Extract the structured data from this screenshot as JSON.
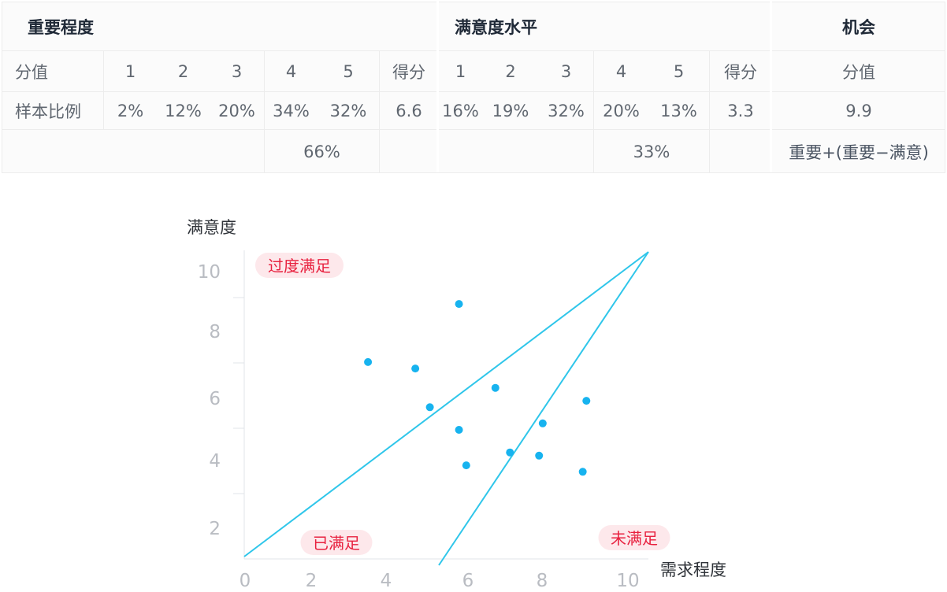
{
  "table": {
    "header": {
      "importance": "重要程度",
      "satisfaction": "满意度水平",
      "opportunity": "机会"
    },
    "row_score": {
      "label": "分值",
      "importance": [
        "1",
        "2",
        "3",
        "4",
        "5",
        "得分"
      ],
      "satisfaction": [
        "1",
        "2",
        "3",
        "4",
        "5",
        "得分"
      ],
      "opportunity": "分值"
    },
    "row_ratio": {
      "label": "样本比例",
      "importance": [
        "2%",
        "12%",
        "20%",
        "34%",
        "32%",
        "6.6"
      ],
      "satisfaction": [
        "16%",
        "19%",
        "32%",
        "20%",
        "13%",
        "3.3"
      ],
      "opportunity": "9.9"
    },
    "row_summary": {
      "importance_total": "66%",
      "satisfaction_total": "33%",
      "opportunity_formula": "重要+(重要−满意)"
    }
  },
  "chart_data": {
    "type": "scatter",
    "xlabel": "需求程度",
    "ylabel": "满意度",
    "xlim": [
      0,
      11
    ],
    "ylim": [
      1,
      11
    ],
    "xticks": [
      "0",
      "2",
      "4",
      "6",
      "8",
      "10"
    ],
    "yticks": [
      "2",
      "4",
      "6",
      "8",
      "10"
    ],
    "points": [
      {
        "x": 5.9,
        "y": 8.9
      },
      {
        "x": 3.4,
        "y": 7.1
      },
      {
        "x": 4.7,
        "y": 6.9
      },
      {
        "x": 6.9,
        "y": 6.3
      },
      {
        "x": 5.1,
        "y": 5.7
      },
      {
        "x": 9.4,
        "y": 5.9
      },
      {
        "x": 5.9,
        "y": 5.0
      },
      {
        "x": 8.2,
        "y": 5.2
      },
      {
        "x": 7.3,
        "y": 4.3
      },
      {
        "x": 8.1,
        "y": 4.2
      },
      {
        "x": 6.1,
        "y": 3.9
      },
      {
        "x": 9.3,
        "y": 3.7
      }
    ],
    "lines": [
      {
        "x1": 0,
        "y1": 1.1,
        "x2": 10.9,
        "y2": 10.6
      },
      {
        "x1": 5.3,
        "y1": 1.0,
        "x2": 10.9,
        "y2": 10.6
      }
    ],
    "zones": [
      {
        "label": "过度满足",
        "x": 1.5,
        "y": 10.1
      },
      {
        "label": "已满足",
        "x": 2.6,
        "y": 1.5
      },
      {
        "label": "未满足",
        "x": 9.7,
        "y": 1.6
      }
    ],
    "colors": {
      "point": "#17b3ef",
      "line": "#2fc6ea",
      "zone_text": "#e8213f",
      "zone_bg": "#fde8eb"
    }
  }
}
